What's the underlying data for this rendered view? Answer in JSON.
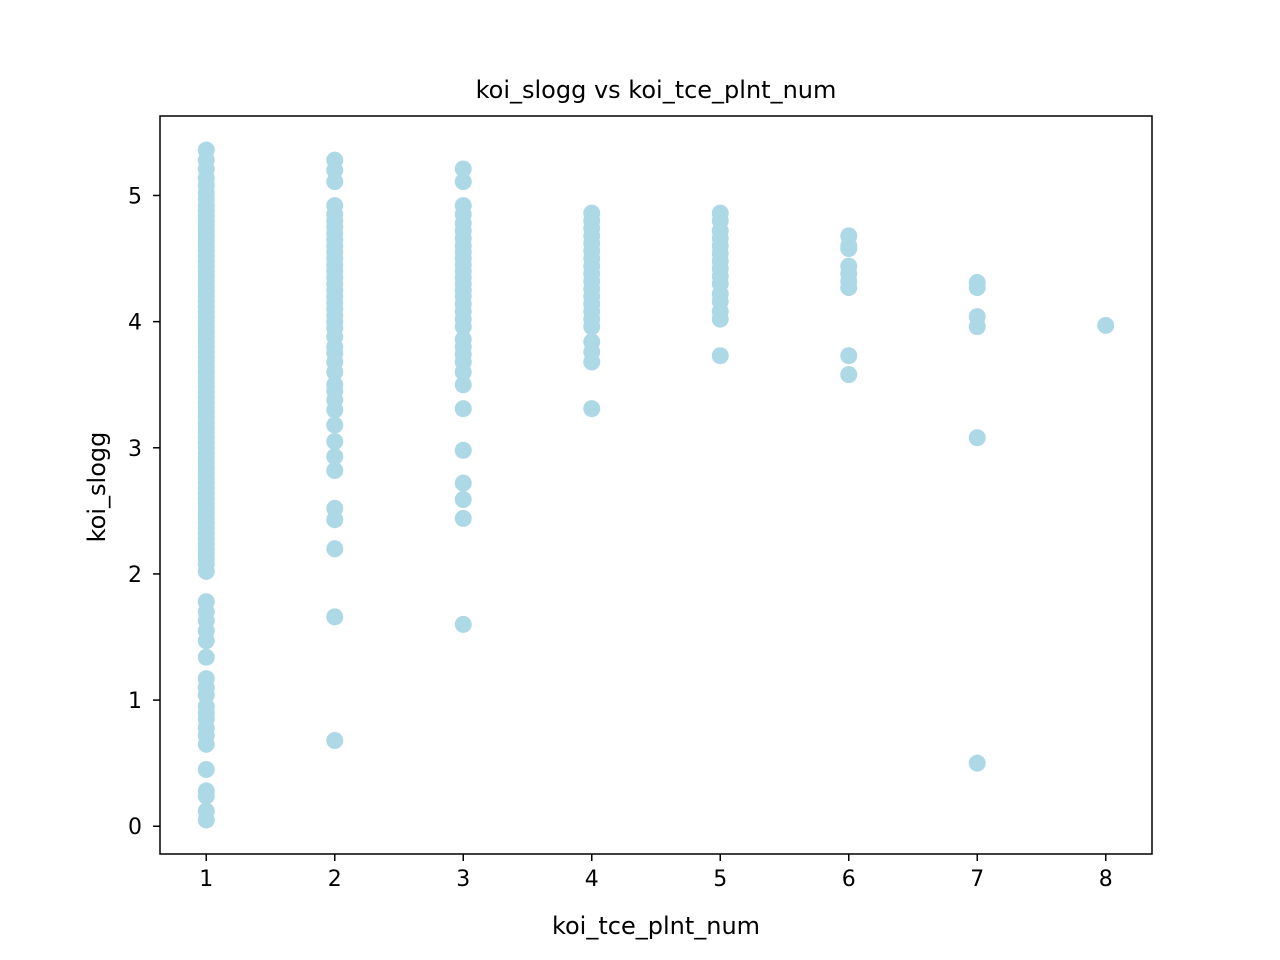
{
  "chart_data": {
    "type": "scatter",
    "title": "koi_slogg vs koi_tce_plnt_num",
    "xlabel": "koi_tce_plnt_num",
    "ylabel": "koi_slogg",
    "xlim": [
      0.64,
      8.36
    ],
    "ylim": [
      -0.22,
      5.63
    ],
    "xticks": [
      1,
      2,
      3,
      4,
      5,
      6,
      7,
      8
    ],
    "yticks": [
      0,
      1,
      2,
      3,
      4,
      5
    ],
    "grid": false,
    "legend": "none",
    "marker_color": "#add8e6",
    "series": [
      {
        "points": [
          [
            1,
            5.36
          ],
          [
            1,
            5.28
          ],
          [
            1,
            5.21
          ],
          [
            1,
            5.14
          ],
          [
            1,
            5.08
          ],
          [
            1,
            5.02
          ],
          [
            1,
            4.97
          ],
          [
            1,
            4.92
          ],
          [
            1,
            4.88
          ],
          [
            1,
            4.84
          ],
          [
            1,
            4.8
          ],
          [
            1,
            4.76
          ],
          [
            1,
            4.72
          ],
          [
            1,
            4.68
          ],
          [
            1,
            4.64
          ],
          [
            1,
            4.6
          ],
          [
            1,
            4.56
          ],
          [
            1,
            4.52
          ],
          [
            1,
            4.48
          ],
          [
            1,
            4.44
          ],
          [
            1,
            4.4
          ],
          [
            1,
            4.36
          ],
          [
            1,
            4.32
          ],
          [
            1,
            4.28
          ],
          [
            1,
            4.24
          ],
          [
            1,
            4.2
          ],
          [
            1,
            4.16
          ],
          [
            1,
            4.12
          ],
          [
            1,
            4.08
          ],
          [
            1,
            4.04
          ],
          [
            1,
            4.0
          ],
          [
            1,
            3.96
          ],
          [
            1,
            3.92
          ],
          [
            1,
            3.88
          ],
          [
            1,
            3.84
          ],
          [
            1,
            3.8
          ],
          [
            1,
            3.76
          ],
          [
            1,
            3.72
          ],
          [
            1,
            3.68
          ],
          [
            1,
            3.64
          ],
          [
            1,
            3.6
          ],
          [
            1,
            3.56
          ],
          [
            1,
            3.52
          ],
          [
            1,
            3.48
          ],
          [
            1,
            3.44
          ],
          [
            1,
            3.4
          ],
          [
            1,
            3.36
          ],
          [
            1,
            3.32
          ],
          [
            1,
            3.28
          ],
          [
            1,
            3.24
          ],
          [
            1,
            3.2
          ],
          [
            1,
            3.16
          ],
          [
            1,
            3.12
          ],
          [
            1,
            3.08
          ],
          [
            1,
            3.04
          ],
          [
            1,
            3.0
          ],
          [
            1,
            2.96
          ],
          [
            1,
            2.92
          ],
          [
            1,
            2.88
          ],
          [
            1,
            2.84
          ],
          [
            1,
            2.8
          ],
          [
            1,
            2.76
          ],
          [
            1,
            2.72
          ],
          [
            1,
            2.68
          ],
          [
            1,
            2.64
          ],
          [
            1,
            2.6
          ],
          [
            1,
            2.56
          ],
          [
            1,
            2.52
          ],
          [
            1,
            2.48
          ],
          [
            1,
            2.44
          ],
          [
            1,
            2.4
          ],
          [
            1,
            2.36
          ],
          [
            1,
            2.32
          ],
          [
            1,
            2.28
          ],
          [
            1,
            2.24
          ],
          [
            1,
            2.2
          ],
          [
            1,
            2.16
          ],
          [
            1,
            2.12
          ],
          [
            1,
            2.08
          ],
          [
            1,
            2.02
          ],
          [
            1,
            1.78
          ],
          [
            1,
            1.7
          ],
          [
            1,
            1.63
          ],
          [
            1,
            1.55
          ],
          [
            1,
            1.47
          ],
          [
            1,
            1.34
          ],
          [
            1,
            1.17
          ],
          [
            1,
            1.1
          ],
          [
            1,
            1.04
          ],
          [
            1,
            0.95
          ],
          [
            1,
            0.9
          ],
          [
            1,
            0.85
          ],
          [
            1,
            0.78
          ],
          [
            1,
            0.72
          ],
          [
            1,
            0.65
          ],
          [
            1,
            0.45
          ],
          [
            1,
            0.28
          ],
          [
            1,
            0.24
          ],
          [
            1,
            0.12
          ],
          [
            1,
            0.05
          ],
          [
            2,
            5.28
          ],
          [
            2,
            5.2
          ],
          [
            2,
            5.11
          ],
          [
            2,
            4.92
          ],
          [
            2,
            4.85
          ],
          [
            2,
            4.8
          ],
          [
            2,
            4.75
          ],
          [
            2,
            4.7
          ],
          [
            2,
            4.65
          ],
          [
            2,
            4.6
          ],
          [
            2,
            4.55
          ],
          [
            2,
            4.5
          ],
          [
            2,
            4.45
          ],
          [
            2,
            4.4
          ],
          [
            2,
            4.35
          ],
          [
            2,
            4.3
          ],
          [
            2,
            4.25
          ],
          [
            2,
            4.2
          ],
          [
            2,
            4.15
          ],
          [
            2,
            4.1
          ],
          [
            2,
            4.05
          ],
          [
            2,
            4.0
          ],
          [
            2,
            3.95
          ],
          [
            2,
            3.88
          ],
          [
            2,
            3.8
          ],
          [
            2,
            3.75
          ],
          [
            2,
            3.68
          ],
          [
            2,
            3.6
          ],
          [
            2,
            3.5
          ],
          [
            2,
            3.45
          ],
          [
            2,
            3.38
          ],
          [
            2,
            3.3
          ],
          [
            2,
            3.18
          ],
          [
            2,
            3.05
          ],
          [
            2,
            2.93
          ],
          [
            2,
            2.82
          ],
          [
            2,
            2.52
          ],
          [
            2,
            2.43
          ],
          [
            2,
            2.2
          ],
          [
            2,
            1.66
          ],
          [
            2,
            0.68
          ],
          [
            3,
            5.21
          ],
          [
            3,
            5.11
          ],
          [
            3,
            4.92
          ],
          [
            3,
            4.85
          ],
          [
            3,
            4.78
          ],
          [
            3,
            4.72
          ],
          [
            3,
            4.66
          ],
          [
            3,
            4.6
          ],
          [
            3,
            4.55
          ],
          [
            3,
            4.5
          ],
          [
            3,
            4.45
          ],
          [
            3,
            4.4
          ],
          [
            3,
            4.35
          ],
          [
            3,
            4.3
          ],
          [
            3,
            4.25
          ],
          [
            3,
            4.2
          ],
          [
            3,
            4.14
          ],
          [
            3,
            4.08
          ],
          [
            3,
            4.02
          ],
          [
            3,
            3.96
          ],
          [
            3,
            3.86
          ],
          [
            3,
            3.8
          ],
          [
            3,
            3.74
          ],
          [
            3,
            3.68
          ],
          [
            3,
            3.6
          ],
          [
            3,
            3.5
          ],
          [
            3,
            3.31
          ],
          [
            3,
            2.98
          ],
          [
            3,
            2.72
          ],
          [
            3,
            2.59
          ],
          [
            3,
            2.44
          ],
          [
            3,
            1.6
          ],
          [
            4,
            4.86
          ],
          [
            4,
            4.8
          ],
          [
            4,
            4.74
          ],
          [
            4,
            4.68
          ],
          [
            4,
            4.62
          ],
          [
            4,
            4.56
          ],
          [
            4,
            4.5
          ],
          [
            4,
            4.44
          ],
          [
            4,
            4.38
          ],
          [
            4,
            4.32
          ],
          [
            4,
            4.26
          ],
          [
            4,
            4.2
          ],
          [
            4,
            4.14
          ],
          [
            4,
            4.08
          ],
          [
            4,
            4.02
          ],
          [
            4,
            3.96
          ],
          [
            4,
            3.84
          ],
          [
            4,
            3.76
          ],
          [
            4,
            3.68
          ],
          [
            4,
            3.31
          ],
          [
            5,
            4.86
          ],
          [
            5,
            4.8
          ],
          [
            5,
            4.72
          ],
          [
            5,
            4.66
          ],
          [
            5,
            4.6
          ],
          [
            5,
            4.54
          ],
          [
            5,
            4.48
          ],
          [
            5,
            4.42
          ],
          [
            5,
            4.36
          ],
          [
            5,
            4.3
          ],
          [
            5,
            4.22
          ],
          [
            5,
            4.16
          ],
          [
            5,
            4.08
          ],
          [
            5,
            4.02
          ],
          [
            5,
            3.73
          ],
          [
            6,
            4.68
          ],
          [
            6,
            4.6
          ],
          [
            6,
            4.58
          ],
          [
            6,
            4.44
          ],
          [
            6,
            4.38
          ],
          [
            6,
            4.32
          ],
          [
            6,
            4.27
          ],
          [
            6,
            3.73
          ],
          [
            6,
            3.58
          ],
          [
            7,
            4.31
          ],
          [
            7,
            4.27
          ],
          [
            7,
            4.04
          ],
          [
            7,
            3.96
          ],
          [
            7,
            3.08
          ],
          [
            7,
            0.5
          ],
          [
            8,
            3.97
          ]
        ]
      }
    ]
  }
}
